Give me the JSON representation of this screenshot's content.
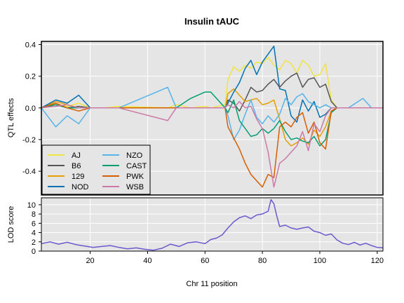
{
  "chart_data": [
    {
      "type": "line",
      "title": "Insulin tAUC",
      "ylabel": "QTL effects",
      "xlim": [
        3,
        122
      ],
      "ylim": [
        -0.55,
        0.42
      ],
      "yticks": [
        -0.4,
        -0.2,
        0.0,
        0.2,
        0.4
      ],
      "ytick_labels": [
        "-0.4",
        "-0.2",
        "0.0",
        "0.2",
        "0.4"
      ],
      "grid": true,
      "legend_position": "bottom-left",
      "series": [
        {
          "name": "AJ",
          "color": "#F0E442",
          "x": [
            3,
            8,
            12,
            16,
            20,
            24,
            25,
            30,
            47,
            50,
            55,
            60,
            62,
            67,
            68,
            70,
            72,
            74,
            76,
            78,
            80,
            82,
            84,
            86,
            88,
            90,
            92,
            94,
            96,
            98,
            100,
            102,
            104,
            106,
            110,
            115,
            118,
            122
          ],
          "y": [
            0.0,
            0.02,
            0.01,
            0.03,
            0.0,
            0.0,
            0.0,
            0.01,
            0.0,
            0.02,
            0.0,
            0.01,
            0.0,
            0.02,
            0.18,
            0.26,
            0.23,
            0.27,
            0.25,
            0.29,
            0.28,
            0.32,
            0.27,
            0.24,
            0.3,
            0.28,
            0.22,
            0.3,
            0.27,
            0.2,
            0.21,
            0.28,
            0.05,
            0.0,
            0.0,
            0.0,
            0.0,
            0.0
          ]
        },
        {
          "name": "B6",
          "color": "#555555",
          "x": [
            3,
            8,
            12,
            16,
            20,
            24,
            25,
            30,
            47,
            50,
            55,
            60,
            62,
            67,
            68,
            70,
            72,
            74,
            76,
            78,
            80,
            82,
            84,
            86,
            88,
            90,
            92,
            94,
            96,
            98,
            100,
            102,
            104,
            106,
            110,
            115,
            118,
            122
          ],
          "y": [
            0.0,
            0.02,
            0.0,
            0.01,
            0.0,
            0.0,
            0.0,
            0.0,
            0.0,
            0.0,
            0.0,
            0.0,
            0.0,
            0.0,
            0.05,
            0.03,
            -0.02,
            0.05,
            0.13,
            0.1,
            0.11,
            0.15,
            0.18,
            0.13,
            0.17,
            0.2,
            0.22,
            0.13,
            0.18,
            0.19,
            0.13,
            0.15,
            0.04,
            0.0,
            0.0,
            0.0,
            0.0,
            0.0
          ]
        },
        {
          "name": "129",
          "color": "#E69F00",
          "x": [
            3,
            8,
            12,
            16,
            20,
            24,
            25,
            30,
            47,
            50,
            55,
            60,
            62,
            67,
            68,
            70,
            72,
            74,
            76,
            78,
            80,
            82,
            84,
            86,
            88,
            90,
            92,
            94,
            96,
            98,
            100,
            102,
            104,
            106,
            110,
            115,
            118,
            122
          ],
          "y": [
            0.0,
            0.04,
            0.02,
            0.0,
            0.0,
            0.0,
            0.0,
            0.0,
            0.0,
            0.0,
            0.0,
            0.0,
            0.0,
            0.0,
            0.09,
            0.12,
            0.08,
            0.04,
            0.05,
            0.06,
            0.02,
            0.03,
            0.05,
            -0.07,
            -0.2,
            -0.24,
            -0.22,
            -0.19,
            -0.23,
            -0.14,
            -0.18,
            -0.12,
            -0.02,
            0.0,
            0.0,
            0.0,
            0.0,
            0.0
          ]
        },
        {
          "name": "NOD",
          "color": "#0072B2",
          "x": [
            3,
            8,
            12,
            16,
            20,
            24,
            25,
            30,
            47,
            50,
            55,
            60,
            62,
            67,
            68,
            70,
            72,
            74,
            76,
            78,
            80,
            82,
            84,
            86,
            88,
            90,
            92,
            94,
            96,
            98,
            100,
            102,
            104,
            106,
            110,
            115,
            118,
            122
          ],
          "y": [
            0.0,
            0.05,
            0.03,
            0.08,
            0.0,
            0.0,
            0.0,
            0.0,
            0.0,
            0.0,
            0.0,
            0.0,
            0.0,
            0.0,
            0.03,
            0.1,
            0.16,
            0.25,
            0.3,
            0.21,
            0.29,
            0.34,
            0.39,
            0.12,
            0.11,
            -0.05,
            -0.09,
            0.05,
            -0.02,
            0.04,
            -0.06,
            -0.04,
            0.0,
            0.0,
            0.0,
            0.0,
            0.0,
            0.0
          ]
        },
        {
          "name": "NZO",
          "color": "#56B4E9",
          "x": [
            3,
            8,
            12,
            16,
            20,
            24,
            25,
            30,
            47,
            50,
            55,
            60,
            62,
            67,
            68,
            70,
            72,
            74,
            76,
            78,
            80,
            82,
            84,
            86,
            88,
            90,
            92,
            94,
            96,
            98,
            100,
            102,
            104,
            106,
            110,
            115,
            118,
            122
          ],
          "y": [
            0.0,
            -0.12,
            -0.05,
            -0.1,
            0.0,
            0.0,
            0.0,
            0.0,
            0.13,
            0.0,
            0.0,
            0.0,
            0.0,
            0.0,
            -0.05,
            -0.2,
            -0.14,
            -0.04,
            0.05,
            -0.06,
            -0.1,
            -0.05,
            -0.09,
            -0.04,
            0.06,
            0.02,
            0.07,
            0.09,
            0.04,
            0.02,
            0.0,
            0.02,
            0.0,
            0.0,
            0.0,
            0.06,
            0.0,
            0.0
          ]
        },
        {
          "name": "CAST",
          "color": "#009E73",
          "x": [
            3,
            8,
            12,
            16,
            20,
            24,
            25,
            30,
            47,
            50,
            55,
            60,
            62,
            67,
            68,
            70,
            72,
            74,
            76,
            78,
            80,
            82,
            84,
            86,
            88,
            90,
            92,
            94,
            96,
            98,
            100,
            102,
            104,
            106,
            110,
            115,
            118,
            122
          ],
          "y": [
            0.0,
            0.02,
            0.0,
            0.0,
            0.0,
            0.0,
            0.0,
            0.0,
            0.0,
            0.0,
            0.06,
            0.1,
            0.1,
            0.0,
            -0.03,
            0.05,
            -0.08,
            -0.13,
            -0.18,
            -0.17,
            -0.13,
            -0.16,
            -0.13,
            -0.08,
            -0.15,
            -0.2,
            -0.19,
            -0.21,
            -0.22,
            -0.18,
            -0.24,
            -0.2,
            -0.03,
            0.0,
            0.0,
            0.0,
            0.0,
            0.0
          ]
        },
        {
          "name": "PWK",
          "color": "#D55E00",
          "x": [
            3,
            8,
            12,
            16,
            20,
            24,
            25,
            30,
            47,
            50,
            55,
            60,
            62,
            67,
            68,
            70,
            72,
            74,
            76,
            78,
            80,
            82,
            84,
            86,
            88,
            90,
            92,
            94,
            96,
            98,
            100,
            102,
            104,
            106,
            110,
            115,
            118,
            122
          ],
          "y": [
            0.0,
            0.03,
            0.0,
            -0.02,
            0.0,
            0.0,
            0.0,
            0.0,
            0.0,
            0.0,
            0.0,
            0.0,
            0.0,
            0.0,
            -0.12,
            -0.19,
            -0.26,
            -0.35,
            -0.42,
            -0.46,
            -0.5,
            -0.42,
            -0.44,
            -0.12,
            -0.09,
            -0.12,
            -0.06,
            -0.03,
            -0.16,
            -0.09,
            -0.22,
            -0.26,
            -0.02,
            0.0,
            0.0,
            0.0,
            0.0,
            0.0
          ]
        },
        {
          "name": "WSB",
          "color": "#CC79A7",
          "x": [
            3,
            8,
            12,
            16,
            20,
            24,
            25,
            30,
            47,
            50,
            55,
            60,
            62,
            67,
            68,
            70,
            72,
            74,
            76,
            78,
            80,
            82,
            84,
            86,
            88,
            90,
            92,
            94,
            96,
            98,
            100,
            102,
            104,
            106,
            110,
            115,
            118,
            122
          ],
          "y": [
            0.0,
            0.01,
            0.02,
            0.0,
            0.0,
            0.0,
            0.0,
            0.0,
            -0.08,
            0.0,
            0.0,
            0.0,
            0.0,
            0.0,
            0.02,
            0.0,
            0.04,
            0.0,
            0.01,
            -0.07,
            -0.13,
            -0.28,
            -0.5,
            -0.35,
            -0.32,
            -0.28,
            -0.24,
            -0.15,
            -0.27,
            -0.1,
            -0.15,
            -0.05,
            0.0,
            0.0,
            0.0,
            0.0,
            0.0,
            0.0
          ]
        }
      ]
    },
    {
      "type": "line",
      "ylabel": "LOD score",
      "xlabel": "Chr 11 position",
      "xlim": [
        3,
        122
      ],
      "ylim": [
        0,
        11.5
      ],
      "yticks": [
        0,
        2,
        4,
        6,
        8,
        10
      ],
      "ytick_labels": [
        "0",
        "2",
        "4",
        "6",
        "8",
        "10"
      ],
      "xticks": [
        20,
        40,
        60,
        80,
        100,
        120
      ],
      "xtick_labels": [
        "20",
        "40",
        "60",
        "80",
        "100",
        "120"
      ],
      "grid": true,
      "series": [
        {
          "color": "#6A5ACD",
          "x": [
            3,
            6,
            9,
            12,
            15,
            18,
            21,
            24,
            27,
            30,
            33,
            36,
            39,
            42,
            45,
            48,
            51,
            54,
            57,
            60,
            62,
            64,
            66,
            68,
            70,
            72,
            74,
            76,
            78,
            80,
            82,
            83,
            84,
            85,
            86,
            88,
            90,
            92,
            94,
            96,
            98,
            100,
            102,
            104,
            106,
            108,
            110,
            112,
            114,
            116,
            118,
            120,
            122
          ],
          "y": [
            1.6,
            2.0,
            1.5,
            1.9,
            1.4,
            1.1,
            0.8,
            1.0,
            1.2,
            0.8,
            0.5,
            0.7,
            0.4,
            0.2,
            0.6,
            1.5,
            1.0,
            1.8,
            2.0,
            1.6,
            2.5,
            2.8,
            3.5,
            5.0,
            6.3,
            7.2,
            7.6,
            7.0,
            7.8,
            8.0,
            8.6,
            11.1,
            10.2,
            7.6,
            5.3,
            5.6,
            5.0,
            4.7,
            5.0,
            5.2,
            4.3,
            4.0,
            3.4,
            3.7,
            2.4,
            1.7,
            1.4,
            1.9,
            1.3,
            1.7,
            1.2,
            0.8,
            0.7
          ]
        }
      ]
    }
  ]
}
